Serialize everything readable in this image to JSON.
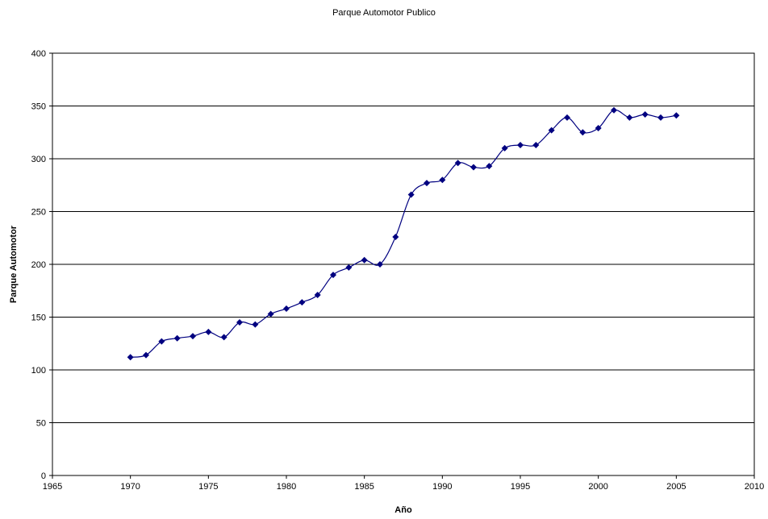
{
  "chart_data": {
    "type": "line",
    "title": "Parque Automotor Publico",
    "xlabel": "Año",
    "ylabel": "Parque Automotor",
    "xlim": [
      1965,
      2010
    ],
    "ylim": [
      0,
      400
    ],
    "x_ticks": [
      1965,
      1970,
      1975,
      1980,
      1985,
      1990,
      1995,
      2000,
      2005,
      2010
    ],
    "y_ticks": [
      0,
      50,
      100,
      150,
      200,
      250,
      300,
      350,
      400
    ],
    "grid": "horizontal",
    "legend": "none",
    "series": [
      {
        "color": "#000080",
        "marker": "diamond",
        "smooth": true,
        "x": [
          1970,
          1971,
          1972,
          1973,
          1974,
          1975,
          1976,
          1977,
          1978,
          1979,
          1980,
          1981,
          1982,
          1983,
          1984,
          1985,
          1986,
          1987,
          1988,
          1989,
          1990,
          1991,
          1992,
          1993,
          1994,
          1995,
          1996,
          1997,
          1998,
          1999,
          2000,
          2001,
          2002,
          2003,
          2004,
          2005
        ],
        "y": [
          112,
          114,
          127,
          130,
          132,
          136,
          131,
          145,
          143,
          153,
          158,
          164,
          171,
          190,
          197,
          204,
          200,
          226,
          266,
          277,
          280,
          296,
          292,
          293,
          310,
          313,
          313,
          327,
          339,
          325,
          329,
          346,
          339,
          342,
          339,
          341
        ]
      }
    ]
  }
}
